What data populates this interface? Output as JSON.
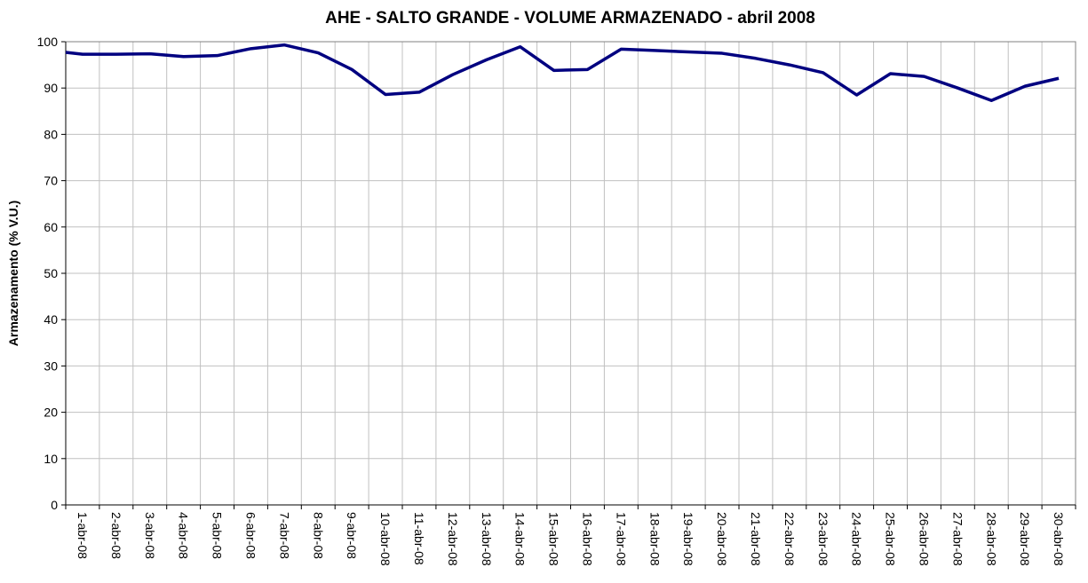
{
  "chart_data": {
    "type": "line",
    "title": "AHE - SALTO GRANDE - VOLUME ARMAZENADO - abril 2008",
    "y_label": "Armazenamento (% V.U.)",
    "categories": [
      null,
      "1-abr-08",
      "2-abr-08",
      "3-abr-08",
      "4-abr-08",
      "5-abr-08",
      "6-abr-08",
      "7-abr-08",
      "8-abr-08",
      "9-abr-08",
      "10-abr-08",
      "11-abr-08",
      "12-abr-08",
      "13-abr-08",
      "14-abr-08",
      "15-abr-08",
      "16-abr-08",
      "17-abr-08",
      "18-abr-08",
      "19-abr-08",
      "20-abr-08",
      "21-abr-08",
      "22-abr-08",
      "23-abr-08",
      "24-abr-08",
      "25-abr-08",
      "26-abr-08",
      "27-abr-08",
      "28-abr-08",
      "29-abr-08",
      "30-abr-08"
    ],
    "series": [
      {
        "name": "Volume armazenado",
        "color": "#000080",
        "values": [
          97.7,
          97.3,
          97.3,
          97.4,
          96.8,
          97.0,
          98.5,
          99.3,
          97.6,
          94.0,
          88.6,
          89.1,
          92.9,
          96.1,
          98.9,
          93.8,
          94.0,
          98.4,
          98.1,
          97.8,
          97.5,
          96.4,
          95.0,
          93.3,
          88.5,
          93.1,
          92.5,
          90.0,
          87.3,
          90.4,
          92.1
        ]
      }
    ],
    "ylim": [
      0,
      100
    ],
    "yticks": [
      0,
      10,
      20,
      30,
      40,
      50,
      60,
      70,
      80,
      90,
      100
    ],
    "grid": true
  }
}
